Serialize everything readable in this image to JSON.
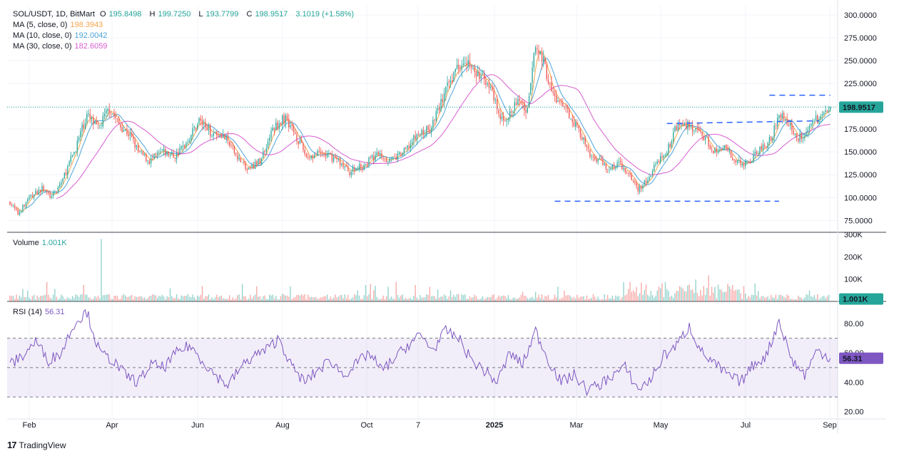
{
  "header": {
    "symbol": "SOL/USDT, 1D, BitMart",
    "o_label": "O",
    "o": "195.8498",
    "h_label": "H",
    "h": "199.7250",
    "l_label": "L",
    "l": "193.7799",
    "c_label": "C",
    "c": "198.9517",
    "change": "3.1019 (+1.58%)"
  },
  "ma": [
    {
      "label": "MA (5, close, 0)",
      "value": "198.3943",
      "color": "#f7a44a"
    },
    {
      "label": "MA (10, close, 0)",
      "value": "192.0042",
      "color": "#4ba3d8"
    },
    {
      "label": "MA (30, close, 0)",
      "value": "182.6059",
      "color": "#d75ccf"
    }
  ],
  "volume_legend": {
    "label": "Volume",
    "value": "1.001K"
  },
  "rsi_legend": {
    "label": "RSI (14)",
    "value": "56.31"
  },
  "price_tag": "198.9517",
  "volume_tag": "1.001K",
  "rsi_tag": "56.31",
  "brand": "TradingView",
  "colors": {
    "up": "#26a69a",
    "down": "#ef5350",
    "rsi": "#7e57c2",
    "trendline": "#2962ff",
    "ma5": "#f7a44a",
    "ma10": "#4ba3d8",
    "ma30": "#d75ccf"
  },
  "chart_data": {
    "type": "candlestick",
    "price_axis": {
      "ticks": [
        "300.0000",
        "275.0000",
        "250.0000",
        "225.0000",
        "200.0000",
        "175.0000",
        "150.0000",
        "125.0000",
        "100.0000",
        "75.0000"
      ],
      "range": [
        62,
        310
      ]
    },
    "volume_axis": {
      "ticks": [
        "300K",
        "200K",
        "100K"
      ],
      "range": [
        0,
        310000
      ]
    },
    "rsi_axis": {
      "ticks": [
        "80.00",
        "60.00",
        "40.00",
        "20.00"
      ],
      "range": [
        15,
        95
      ],
      "bands": [
        30,
        50,
        70
      ]
    },
    "x_labels": [
      "Feb",
      "Apr",
      "Jun",
      "Aug",
      "Oct",
      "7",
      "2025",
      "Mar",
      "May",
      "Jul",
      "Sep"
    ],
    "close_keypoints": [
      [
        0,
        95
      ],
      [
        5,
        82
      ],
      [
        12,
        100
      ],
      [
        20,
        110
      ],
      [
        26,
        100
      ],
      [
        33,
        120
      ],
      [
        40,
        150
      ],
      [
        48,
        190
      ],
      [
        55,
        175
      ],
      [
        62,
        198
      ],
      [
        68,
        180
      ],
      [
        75,
        168
      ],
      [
        80,
        150
      ],
      [
        87,
        140
      ],
      [
        95,
        150
      ],
      [
        103,
        145
      ],
      [
        110,
        160
      ],
      [
        118,
        185
      ],
      [
        125,
        172
      ],
      [
        132,
        170
      ],
      [
        140,
        150
      ],
      [
        148,
        130
      ],
      [
        156,
        140
      ],
      [
        164,
        175
      ],
      [
        172,
        188
      ],
      [
        178,
        170
      ],
      [
        185,
        145
      ],
      [
        195,
        148
      ],
      [
        204,
        142
      ],
      [
        212,
        128
      ],
      [
        220,
        135
      ],
      [
        230,
        148
      ],
      [
        238,
        140
      ],
      [
        246,
        150
      ],
      [
        254,
        168
      ],
      [
        262,
        175
      ],
      [
        270,
        208
      ],
      [
        278,
        240
      ],
      [
        284,
        255
      ],
      [
        290,
        235
      ],
      [
        298,
        228
      ],
      [
        306,
        185
      ],
      [
        312,
        190
      ],
      [
        318,
        208
      ],
      [
        323,
        195
      ],
      [
        327,
        265
      ],
      [
        332,
        255
      ],
      [
        338,
        215
      ],
      [
        344,
        200
      ],
      [
        350,
        190
      ],
      [
        356,
        170
      ],
      [
        362,
        145
      ],
      [
        368,
        142
      ],
      [
        374,
        130
      ],
      [
        380,
        138
      ],
      [
        386,
        125
      ],
      [
        392,
        108
      ],
      [
        398,
        120
      ],
      [
        404,
        140
      ],
      [
        410,
        150
      ],
      [
        416,
        178
      ],
      [
        422,
        180
      ],
      [
        428,
        172
      ],
      [
        434,
        165
      ],
      [
        440,
        150
      ],
      [
        446,
        153
      ],
      [
        452,
        142
      ],
      [
        458,
        135
      ],
      [
        464,
        145
      ],
      [
        470,
        155
      ],
      [
        476,
        168
      ],
      [
        480,
        195
      ],
      [
        486,
        180
      ],
      [
        492,
        165
      ],
      [
        498,
        175
      ],
      [
        503,
        185
      ],
      [
        508,
        192
      ],
      [
        512,
        198.95
      ]
    ],
    "rsi_keypoints": [
      [
        0,
        52
      ],
      [
        8,
        58
      ],
      [
        16,
        68
      ],
      [
        24,
        55
      ],
      [
        32,
        60
      ],
      [
        40,
        80
      ],
      [
        48,
        88
      ],
      [
        56,
        60
      ],
      [
        64,
        55
      ],
      [
        72,
        45
      ],
      [
        80,
        40
      ],
      [
        88,
        52
      ],
      [
        96,
        50
      ],
      [
        104,
        60
      ],
      [
        112,
        65
      ],
      [
        120,
        55
      ],
      [
        128,
        45
      ],
      [
        136,
        38
      ],
      [
        144,
        50
      ],
      [
        152,
        58
      ],
      [
        160,
        62
      ],
      [
        168,
        70
      ],
      [
        176,
        50
      ],
      [
        184,
        40
      ],
      [
        192,
        48
      ],
      [
        200,
        55
      ],
      [
        208,
        45
      ],
      [
        216,
        52
      ],
      [
        224,
        60
      ],
      [
        232,
        48
      ],
      [
        240,
        56
      ],
      [
        248,
        65
      ],
      [
        256,
        72
      ],
      [
        264,
        62
      ],
      [
        272,
        75
      ],
      [
        280,
        70
      ],
      [
        288,
        55
      ],
      [
        296,
        48
      ],
      [
        304,
        40
      ],
      [
        312,
        60
      ],
      [
        320,
        52
      ],
      [
        328,
        75
      ],
      [
        336,
        55
      ],
      [
        344,
        40
      ],
      [
        352,
        45
      ],
      [
        360,
        35
      ],
      [
        368,
        38
      ],
      [
        376,
        45
      ],
      [
        384,
        50
      ],
      [
        392,
        35
      ],
      [
        400,
        42
      ],
      [
        408,
        58
      ],
      [
        416,
        65
      ],
      [
        424,
        78
      ],
      [
        432,
        60
      ],
      [
        440,
        52
      ],
      [
        448,
        45
      ],
      [
        456,
        40
      ],
      [
        464,
        52
      ],
      [
        472,
        58
      ],
      [
        480,
        82
      ],
      [
        488,
        55
      ],
      [
        496,
        45
      ],
      [
        504,
        62
      ],
      [
        512,
        56.31
      ]
    ],
    "trendlines": [
      {
        "from": [
          340,
          96
        ],
        "to": [
          480,
          96
        ],
        "style": "dashed"
      },
      {
        "from": [
          410,
          181
        ],
        "to": [
          505,
          184
        ],
        "style": "dashed"
      },
      {
        "from": [
          474,
          212
        ],
        "to": [
          512,
          212
        ],
        "style": "dashed"
      }
    ]
  }
}
